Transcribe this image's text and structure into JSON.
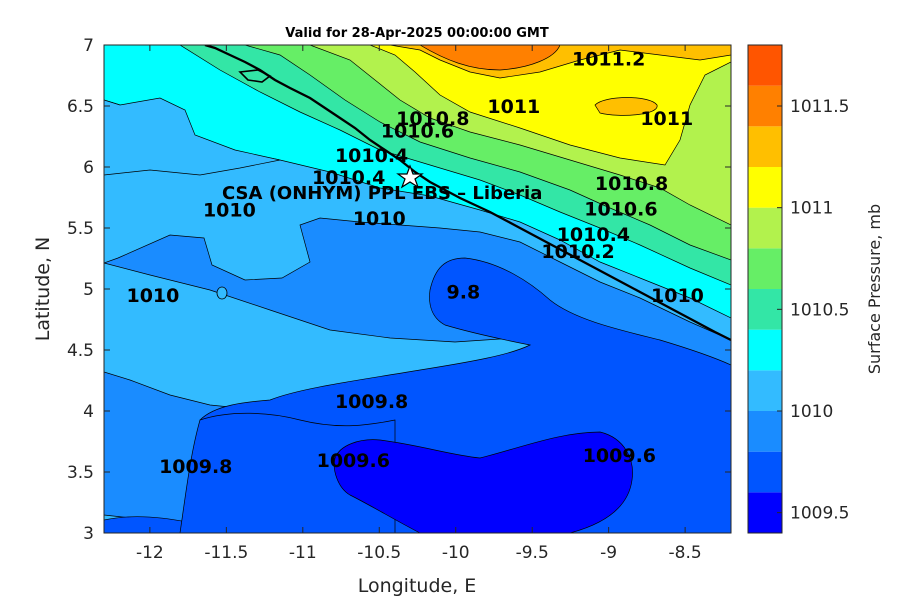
{
  "chart_data": {
    "type": "contour",
    "title": "Valid for 28-Apr-2025 00:00:00 GMT",
    "xlabel": "Longitude, E",
    "ylabel": "Latitude, N",
    "xlim": [
      -12.3,
      -8.2
    ],
    "ylim": [
      3,
      7
    ],
    "xticks": [
      -12,
      -11.5,
      -11,
      -10.5,
      -10,
      -9.5,
      -9,
      -8.5
    ],
    "xtick_labels": [
      "-12",
      "-11.5",
      "-11",
      "-10.5",
      "-10",
      "-9.5",
      "-9",
      "-8.5"
    ],
    "yticks": [
      3,
      3.5,
      4,
      4.5,
      5,
      5.5,
      6,
      6.5,
      7
    ],
    "ytick_labels": [
      "3",
      "3.5",
      "4",
      "4.5",
      "5",
      "5.5",
      "6",
      "6.5",
      "7"
    ],
    "colorbar": {
      "label": "Surface Pressure, mb",
      "range": [
        1009.4,
        1011.8
      ],
      "ticks": [
        1009.5,
        1010,
        1010.5,
        1011,
        1011.5
      ],
      "tick_labels": [
        "1009.5",
        "1010",
        "1010.5",
        "1011",
        "1011.5"
      ],
      "levels": [
        1009.4,
        1009.6,
        1009.8,
        1010.0,
        1010.2,
        1010.4,
        1010.6,
        1010.8,
        1011.0,
        1011.2,
        1011.4,
        1011.6,
        1011.8
      ],
      "colors": [
        "#0000ff",
        "#0055ff",
        "#1a8cff",
        "#33bbff",
        "#00ffff",
        "#33e6a6",
        "#66ee66",
        "#b2f24d",
        "#ffff00",
        "#ffbf00",
        "#ff8000",
        "#ff5500"
      ]
    },
    "contour_labels": [
      {
        "text": "1011.2",
        "lon": -9.0,
        "lat": 6.89
      },
      {
        "text": "1011",
        "lon": -9.62,
        "lat": 6.5
      },
      {
        "text": "1011",
        "lon": -8.62,
        "lat": 6.4
      },
      {
        "text": "1010.8",
        "lon": -10.15,
        "lat": 6.4
      },
      {
        "text": "1010.6",
        "lon": -10.25,
        "lat": 6.3
      },
      {
        "text": "1010.4",
        "lon": -10.55,
        "lat": 6.1
      },
      {
        "text": "1010.8",
        "lon": -8.85,
        "lat": 5.87
      },
      {
        "text": "1010.6",
        "lon": -8.92,
        "lat": 5.66
      },
      {
        "text": "1010.4",
        "lon": -9.1,
        "lat": 5.45
      },
      {
        "text": "1010.2",
        "lon": -9.2,
        "lat": 5.31
      },
      {
        "text": "1010",
        "lon": -8.55,
        "lat": 4.95
      },
      {
        "text": "1010.4",
        "lon": -10.7,
        "lat": 5.92
      },
      {
        "text": "1010",
        "lon": -11.48,
        "lat": 5.65
      },
      {
        "text": "1010",
        "lon": -10.5,
        "lat": 5.58
      },
      {
        "text": "1010",
        "lon": -11.98,
        "lat": 4.95
      },
      {
        "text": "9.8",
        "lon": -9.95,
        "lat": 4.98
      },
      {
        "text": "1009.8",
        "lon": -10.55,
        "lat": 4.08
      },
      {
        "text": "1009.6",
        "lon": -10.67,
        "lat": 3.6
      },
      {
        "text": "1009.6",
        "lon": -8.93,
        "lat": 3.64
      },
      {
        "text": "1009.8",
        "lon": -11.7,
        "lat": 3.55
      }
    ],
    "site": {
      "label": "CSA (ONHYM) PPL EBS  – Liberia",
      "lon": -10.3,
      "lat": 5.92
    }
  }
}
